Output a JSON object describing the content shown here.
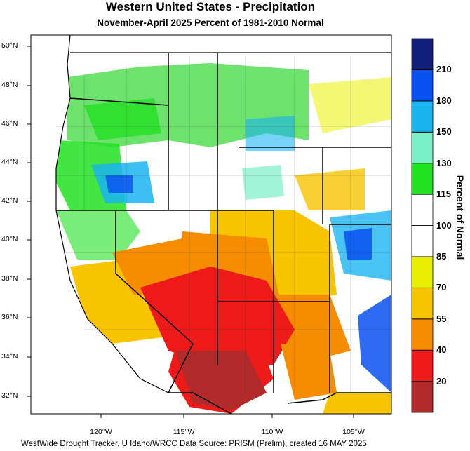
{
  "title": "Western United States - Precipitation",
  "subtitle": "November-April 2025  Percent of 1981-2010 Normal",
  "footer": "WestWide Drought Tracker, U Idaho/WRCC Data Source: PRISM (Prelim), created 16 MAY 2025",
  "colorbar": {
    "title": "Percent of Normal",
    "bins": [
      {
        "color": "#b22a2a",
        "label": "20"
      },
      {
        "color": "#ee1a1a",
        "label": "40"
      },
      {
        "color": "#f68c00",
        "label": "55"
      },
      {
        "color": "#f8c400",
        "label": "70"
      },
      {
        "color": "#eaf000",
        "label": "85"
      },
      {
        "color": "#ffffff",
        "label": "100"
      },
      {
        "color": "#ffffff",
        "label": "115"
      },
      {
        "color": "#22e022",
        "label": "130"
      },
      {
        "color": "#7af0c8",
        "label": "150"
      },
      {
        "color": "#1ab4f0",
        "label": "180"
      },
      {
        "color": "#0a50f0",
        "label": "210"
      },
      {
        "color": "#10207a",
        "label": ""
      }
    ]
  },
  "axes": {
    "lat_labels": [
      "50°N",
      "48°N",
      "46°N",
      "44°N",
      "42°N",
      "40°N",
      "38°N",
      "36°N",
      "34°N",
      "32°N"
    ],
    "lon_labels": [
      "120°W",
      "115°W",
      "110°W",
      "105°W"
    ]
  }
}
